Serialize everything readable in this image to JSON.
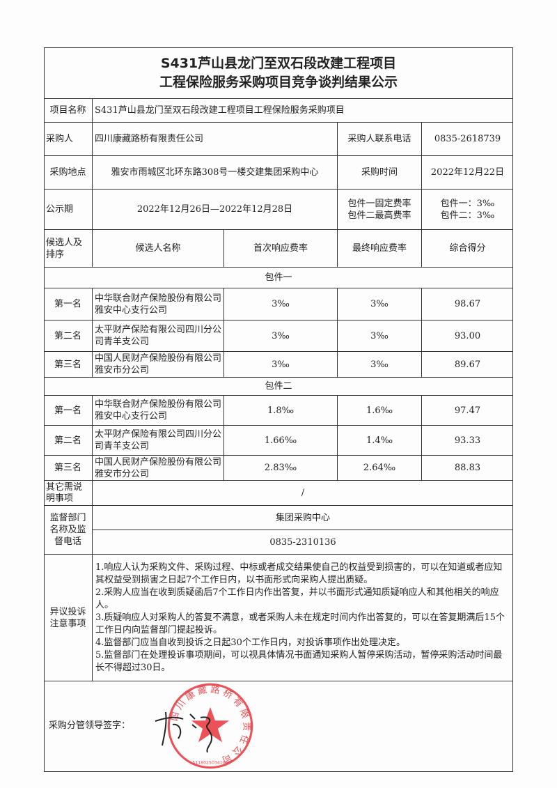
{
  "title": {
    "line1": "S431芦山县龙门至双石段改建工程项目",
    "line2": "工程保险服务采购项目竞争谈判结果公示"
  },
  "info": {
    "project_name_label": "项目名称",
    "project_name": "S431芦山县龙门至双石段改建工程项目工程保险服务采购项目",
    "purchaser_label": "采购人",
    "purchaser": "四川康藏路桥有限责任公司",
    "phone_label": "采购人联系电话",
    "phone": "0835-2618739",
    "location_label": "采购地点",
    "location": "雅安市雨城区北环东路308号一楼交建集团采购中心",
    "time_label": "采购时间",
    "time": "2022年12月22日",
    "period_label": "公示期",
    "period": "2022年12月26日—2022年12月28日",
    "rate_label1": "包件一固定费率",
    "rate_label2": "包件二最高费率",
    "rate_value1": "包件一：3‰",
    "rate_value2": "包件二：3‰"
  },
  "columns": [
    "候选人及排序",
    "候选人名称",
    "首次响应费率",
    "最终响应费率",
    "综合得分"
  ],
  "packages": [
    {
      "name": "包件一",
      "rows": [
        {
          "rank": "第一名",
          "candidate": "中华联合财产保险股份有限公司雅安中心支行公司",
          "first": "3‰",
          "final": "3‰",
          "score": "98.67"
        },
        {
          "rank": "第二名",
          "candidate": "太平财产保险有限公司四川分公司青羊支公司",
          "first": "3‰",
          "final": "3‰",
          "score": "93.00"
        },
        {
          "rank": "第三名",
          "candidate": "中国人民财产保险股份有限公司雅安市分公司",
          "first": "3‰",
          "final": "3‰",
          "score": "89.67"
        }
      ]
    },
    {
      "name": "包件二",
      "rows": [
        {
          "rank": "第一名",
          "candidate": "中华联合财产保险股份有限公司雅安中心支行公司",
          "first": "1.8‰",
          "final": "1.6‰",
          "score": "97.47"
        },
        {
          "rank": "第二名",
          "candidate": "太平财产保险有限公司四川分公司青羊支公司",
          "first": "1.66‰",
          "final": "1.4‰",
          "score": "93.33"
        },
        {
          "rank": "第三名",
          "candidate": "中国人民财产保险股份有限公司雅安市分公司",
          "first": "2.83‰",
          "final": "2.64‰",
          "score": "88.83"
        }
      ]
    }
  ],
  "other": {
    "label": "其它需说明事项",
    "value": "/"
  },
  "supervision": {
    "label": "监督部门名称及监督电话",
    "dept": "集团采购中心",
    "phone": "0835-2310136"
  },
  "objection": {
    "label": "异议投诉注意事项",
    "items": [
      "1.响应人认为采购文件、采购过程、中标或者成交结果使自己的权益受到损害的，可以在知道或者应知其权益受到损害之日起7个工作日内，以书面形式向采购人提出质疑。",
      "2.采购人应当在收到质疑函后7个工作日内作出答复，并以书面形式通知质疑响应人和其他相关的响应人。",
      "3.质疑响应人对采购人的答复不满意，或者采购人未在规定时间内作出答复的，可以在答复期满后15个工作日内向监督部门提起投诉。",
      "4.监督部门应当自收到投诉之日起30个工作日内，对投诉事项作出处理决定。",
      "5.监督部门在处理投诉事项期间，可以视具体情况书面通知采购人暂停采购活动，暂停采购活动时间最长不得超过30日。"
    ]
  },
  "signature": {
    "label": "采购分管领导签字："
  },
  "stamp": {
    "text": "四川康藏路桥有限责任公司",
    "number": "5118025034105",
    "color": "#e8333a"
  }
}
